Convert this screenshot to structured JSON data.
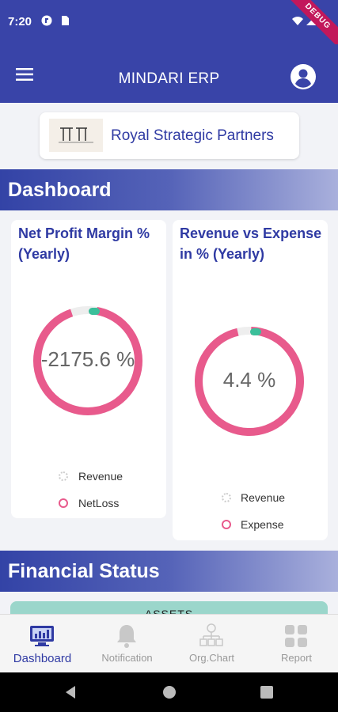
{
  "status_bar": {
    "time": "7:20",
    "debug_label": "DEBUG"
  },
  "app_bar": {
    "title": "MINDARI ERP"
  },
  "company": {
    "name": "Royal Strategic Partners",
    "logo_text": "रंगभूमि"
  },
  "sections": {
    "dashboard": "Dashboard",
    "financial": "Financial Status"
  },
  "cards": [
    {
      "title": "Net Profit Margin %(Yearly)",
      "value": "-2175.6 %",
      "legend": [
        "Revenue",
        "NetLoss"
      ],
      "ring_color": "#e85a8c",
      "marker_color": "#3bbf9a"
    },
    {
      "title": "Revenue vs Expense in % (Yearly)",
      "value": "4.4 %",
      "legend": [
        "Revenue",
        "Expense"
      ],
      "ring_color": "#e85a8c",
      "marker_color": "#3bbf9a"
    }
  ],
  "assets": {
    "label": "ASSETS"
  },
  "bottom_nav": [
    {
      "label": "Dashboard",
      "icon": "dashboard-icon",
      "active": true
    },
    {
      "label": "Notification",
      "icon": "bell-icon",
      "active": false
    },
    {
      "label": "Org.Chart",
      "icon": "org-chart-icon",
      "active": false
    },
    {
      "label": "Report",
      "icon": "grid-icon",
      "active": false
    }
  ],
  "colors": {
    "primary": "#3944a8",
    "accent": "#e85a8c",
    "teal": "#3bbf9a"
  }
}
